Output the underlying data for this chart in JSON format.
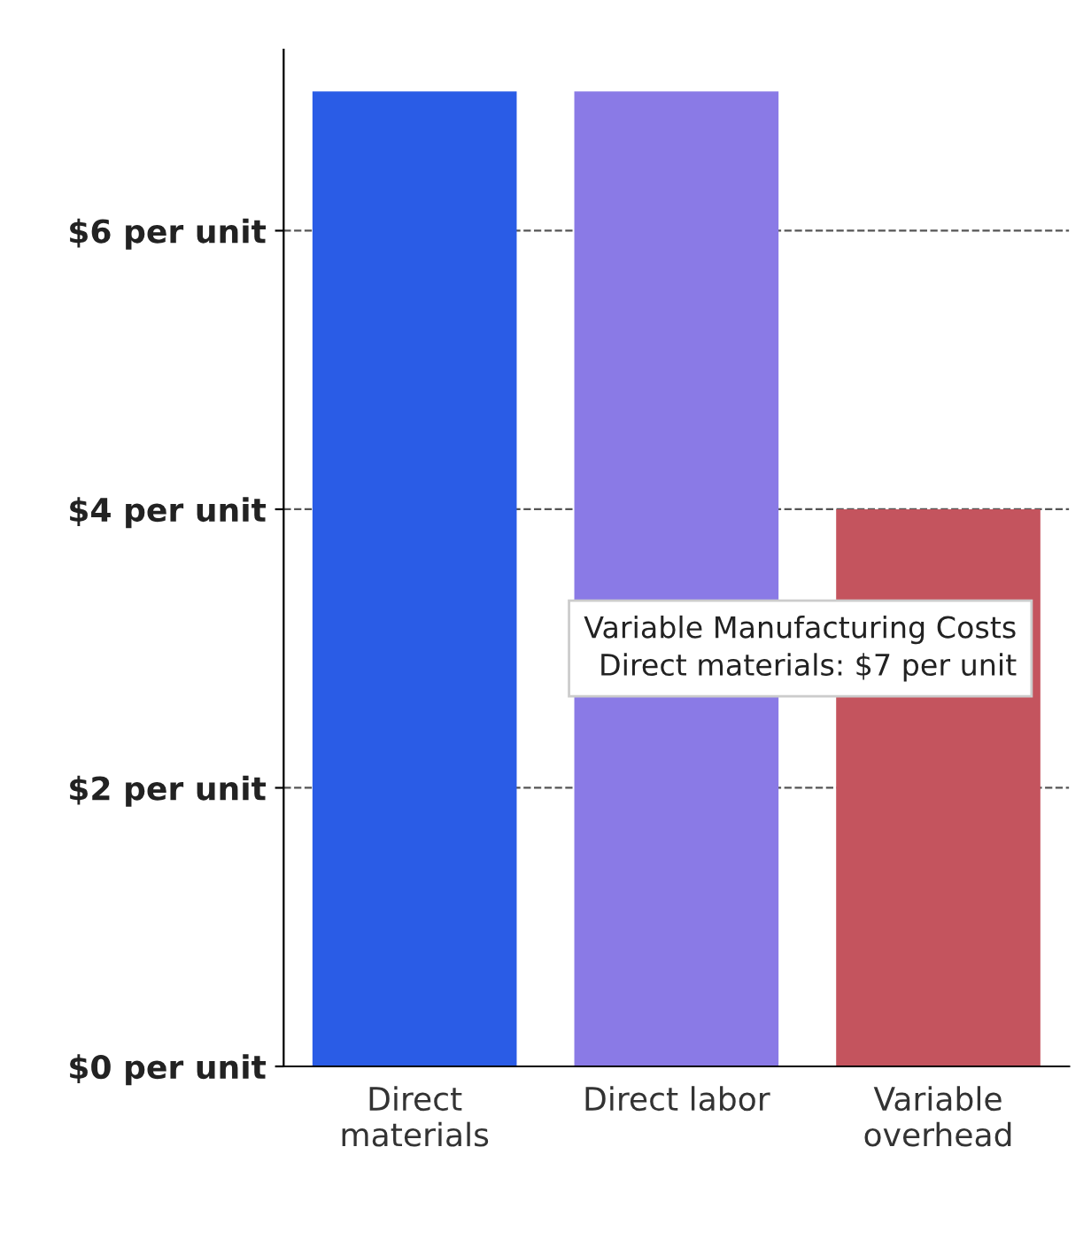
{
  "chart_data": {
    "type": "bar",
    "categories": [
      "Direct\nmaterials",
      "Direct labor",
      "Variable\noverhead"
    ],
    "values": [
      7,
      7,
      4
    ],
    "colors": [
      "#2a5ce6",
      "#8a7ae6",
      "#c4545e"
    ],
    "ylim": [
      0,
      7.3
    ],
    "yticks": [
      {
        "value": 0,
        "label": "$0 per unit"
      },
      {
        "value": 2,
        "label": "$2 per unit"
      },
      {
        "value": 4,
        "label": "$4 per unit"
      },
      {
        "value": 6,
        "label": "$6 per unit"
      }
    ],
    "grid": "y",
    "annotations": [
      "Variable Manufacturing Costs",
      "Direct materials: $7 per unit"
    ]
  }
}
